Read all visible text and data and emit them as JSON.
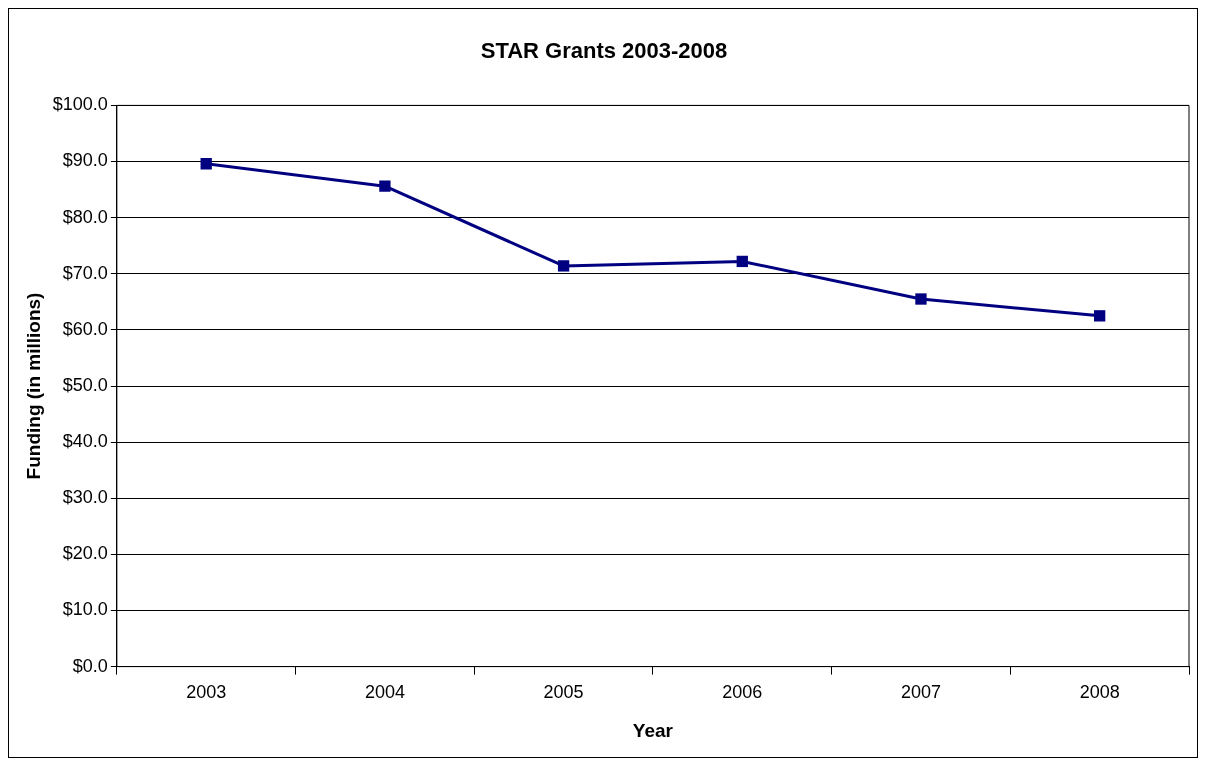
{
  "chart_data": {
    "type": "line",
    "title": "STAR Grants 2003-2008",
    "xlabel": "Year",
    "ylabel": "Funding (in millions)",
    "categories": [
      "2003",
      "2004",
      "2005",
      "2006",
      "2007",
      "2008"
    ],
    "series": [
      {
        "color": "#000080",
        "values": [
          89.6,
          85.6,
          71.4,
          72.2,
          65.5,
          62.5
        ]
      }
    ],
    "ylim": [
      0,
      100
    ],
    "yticks": [
      {
        "value": 0,
        "label": "$0.0"
      },
      {
        "value": 10,
        "label": "$10.0"
      },
      {
        "value": 20,
        "label": "$20.0"
      },
      {
        "value": 30,
        "label": "$30.0"
      },
      {
        "value": 40,
        "label": "$40.0"
      },
      {
        "value": 50,
        "label": "$50.0"
      },
      {
        "value": 60,
        "label": "$60.0"
      },
      {
        "value": 70,
        "label": "$70.0"
      },
      {
        "value": 80,
        "label": "$80.0"
      },
      {
        "value": 90,
        "label": "$90.0"
      },
      {
        "value": 100,
        "label": "$100.0"
      }
    ],
    "grid": "y",
    "legend": false,
    "marker": "square",
    "line_style": "solid"
  }
}
